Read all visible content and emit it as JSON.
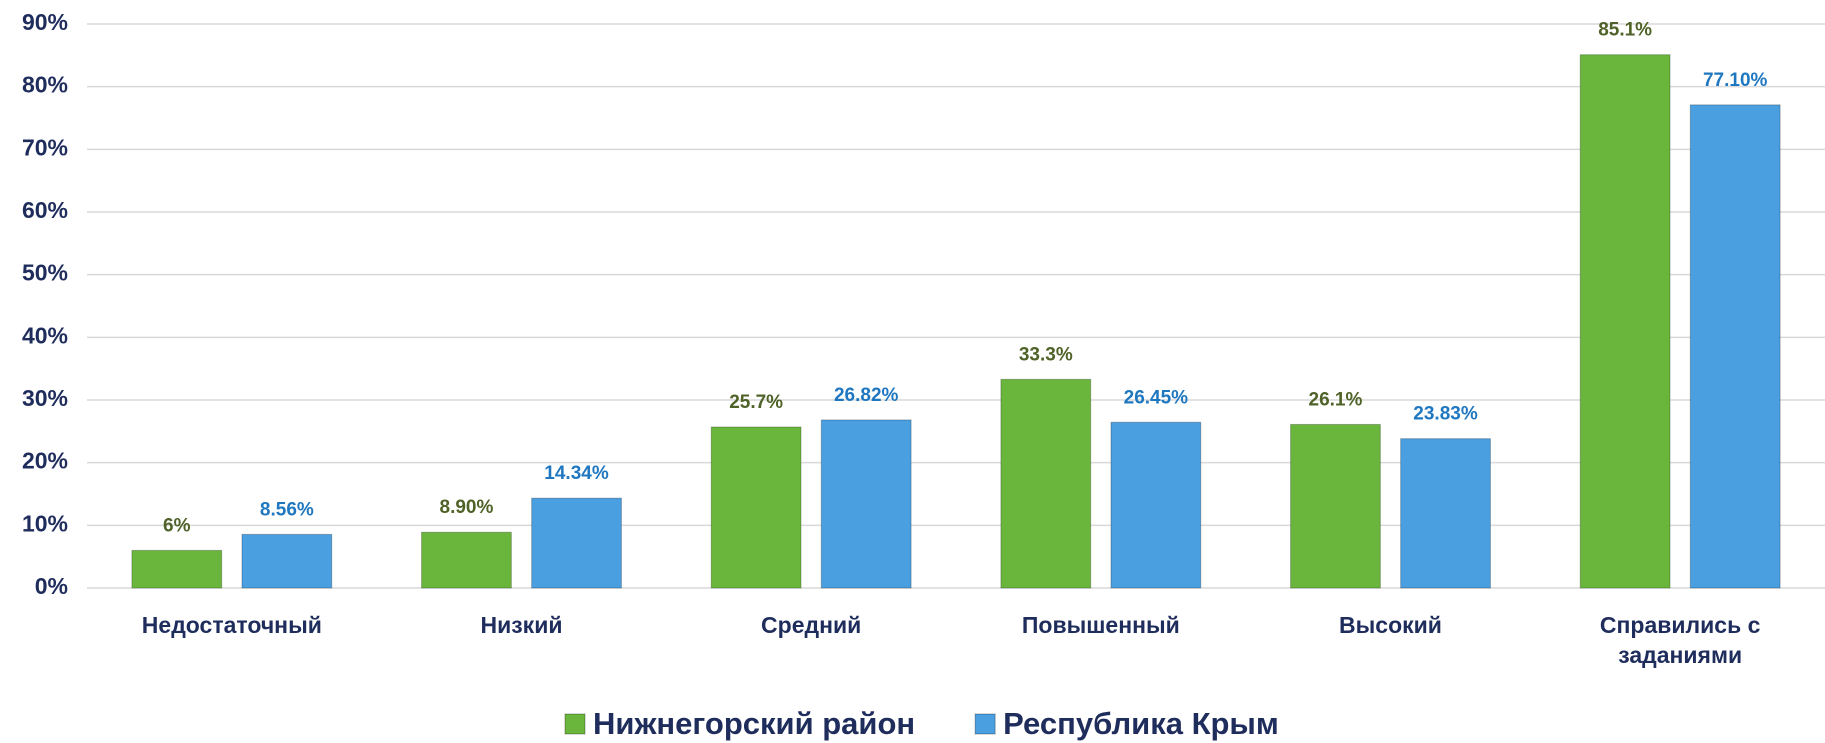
{
  "chart_data": {
    "type": "bar",
    "categories": [
      "Недостаточный",
      "Низкий",
      "Средний",
      "Повышенный",
      "Высокий",
      "Справились с заданиями"
    ],
    "series": [
      {
        "name": "Нижнегорский район",
        "color": "#6ab63c",
        "label_color": "#4f6228",
        "values": [
          6,
          8.9,
          25.7,
          33.3,
          26.1,
          85.1
        ],
        "value_labels": [
          "6%",
          "8.90%",
          "25.7%",
          "33.3%",
          "26.1%",
          "85.1%"
        ]
      },
      {
        "name": "Республика Крым",
        "color": "#4a9fe0",
        "label_color": "#1f77c0",
        "values": [
          8.56,
          14.34,
          26.82,
          26.45,
          23.83,
          77.1
        ],
        "value_labels": [
          "8.56%",
          "14.34%",
          "26.82%",
          "26.45%",
          "23.83%",
          "77.10%"
        ]
      }
    ],
    "ylim": [
      0,
      90
    ],
    "yticks": [
      {
        "value": 0,
        "label": "0%"
      },
      {
        "value": 10,
        "label": "10%"
      },
      {
        "value": 20,
        "label": "20%"
      },
      {
        "value": 30,
        "label": "30%"
      },
      {
        "value": 40,
        "label": "40%"
      },
      {
        "value": 50,
        "label": "50%"
      },
      {
        "value": 60,
        "label": "60%"
      },
      {
        "value": 70,
        "label": "70%"
      },
      {
        "value": 80,
        "label": "80%"
      },
      {
        "value": 90,
        "label": "90%"
      }
    ],
    "grid": true,
    "legend": "bottom"
  }
}
